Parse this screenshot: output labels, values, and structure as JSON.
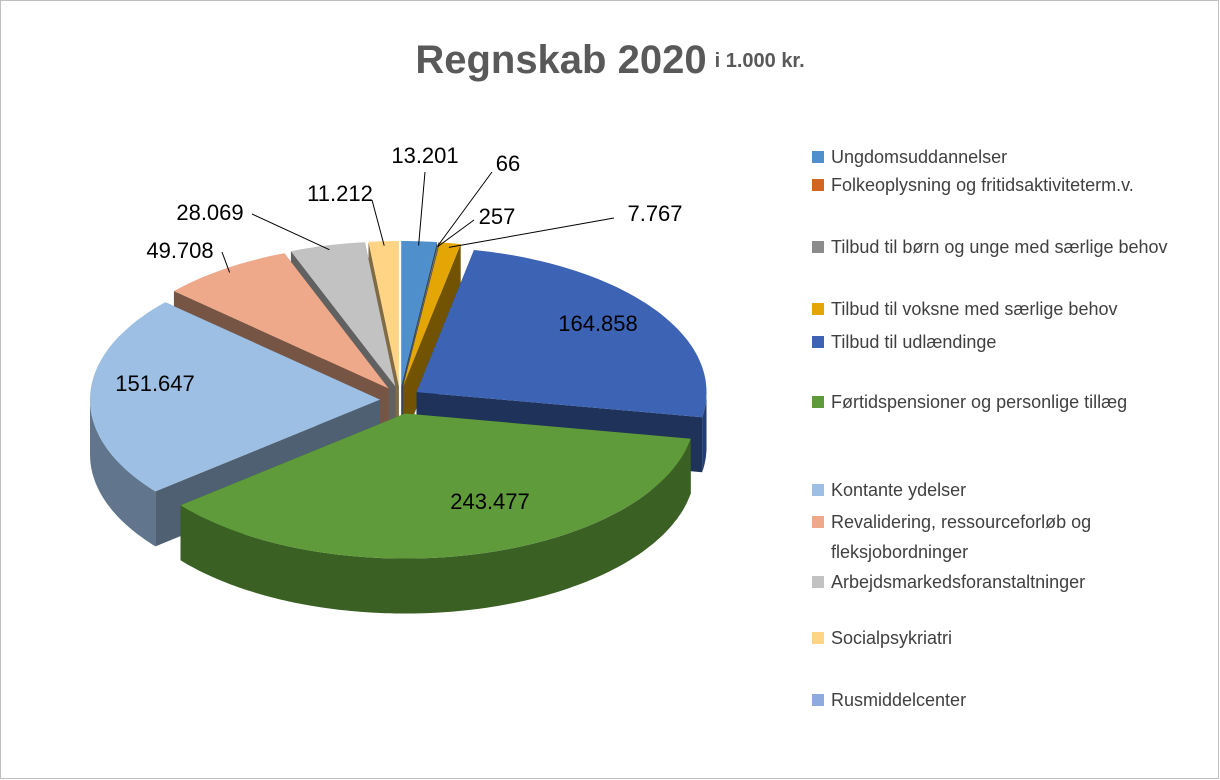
{
  "chart_data": {
    "type": "pie3d",
    "title": "Regnskab 2020",
    "subtitle": "i 1.000 kr.",
    "categories": [
      "Ungdomsuddannelser",
      "Folkeoplysning og fritidsaktiviteterm.v.",
      "Tilbud til børn og unge med særlige behov",
      "Tilbud til voksne med særlige behov",
      "Tilbud til udlændinge",
      "Førtidspensioner og personlige tillæg",
      "Kontante ydelser",
      "Revalidering, ressourceforløb og fleksjobordninger",
      "Arbejdsmarkedsforanstaltninger",
      "Socialpsykriatri",
      "Rusmiddelcenter"
    ],
    "values": [
      13201,
      66,
      257,
      7767,
      164858,
      243477,
      151647,
      49708,
      28069,
      11212,
      null
    ],
    "value_labels": [
      "13.201",
      "66",
      "257",
      "7.767",
      "164.858",
      "243.477",
      "151.647",
      "49.708",
      "28.069",
      "11.212",
      null
    ],
    "colors": [
      "#4f8fcc",
      "#d2651f",
      "#8c8c8c",
      "#e3a605",
      "#3c63b4",
      "#5f9b3a",
      "#9cbfe3",
      "#eea98a",
      "#c2c2c2",
      "#ffd585",
      "#8faadc"
    ],
    "legend": "right"
  }
}
